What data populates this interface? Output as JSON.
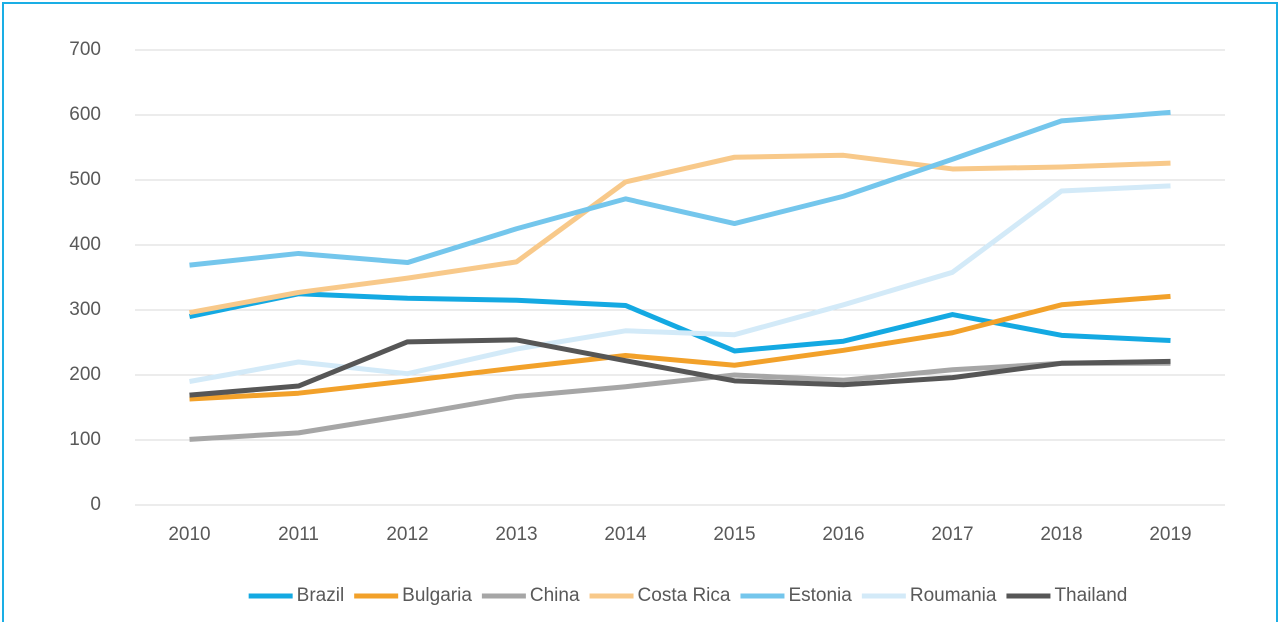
{
  "chart_data": {
    "type": "line",
    "categories": [
      "2010",
      "2011",
      "2012",
      "2013",
      "2014",
      "2015",
      "2016",
      "2017",
      "2018",
      "2019"
    ],
    "series": [
      {
        "name": "Brazil",
        "color": "#14a9e2",
        "values": [
          290,
          325,
          318,
          315,
          307,
          237,
          252,
          293,
          261,
          253
        ]
      },
      {
        "name": "Bulgaria",
        "color": "#f2a12a",
        "values": [
          163,
          172,
          191,
          211,
          230,
          215,
          238,
          265,
          308,
          321
        ]
      },
      {
        "name": "China",
        "color": "#a6a6a6",
        "values": [
          101,
          111,
          138,
          167,
          182,
          200,
          192,
          208,
          218,
          218
        ]
      },
      {
        "name": "Costa Rica",
        "color": "#f8c98a",
        "values": [
          296,
          327,
          349,
          374,
          497,
          535,
          538,
          517,
          520,
          526
        ]
      },
      {
        "name": "Estonia",
        "color": "#74c6ec",
        "values": [
          369,
          387,
          373,
          425,
          471,
          433,
          475,
          532,
          591,
          604
        ]
      },
      {
        "name": "Roumania",
        "color": "#d3eaf8",
        "values": [
          190,
          220,
          202,
          240,
          268,
          262,
          308,
          358,
          483,
          491
        ]
      },
      {
        "name": "Thailand",
        "color": "#565656",
        "values": [
          169,
          183,
          251,
          254,
          222,
          191,
          185,
          196,
          218,
          221
        ]
      }
    ],
    "ylim": [
      0,
      700
    ],
    "yticks": [
      0,
      100,
      200,
      300,
      400,
      500,
      600,
      700
    ],
    "grid": true,
    "legend": "bottom"
  }
}
